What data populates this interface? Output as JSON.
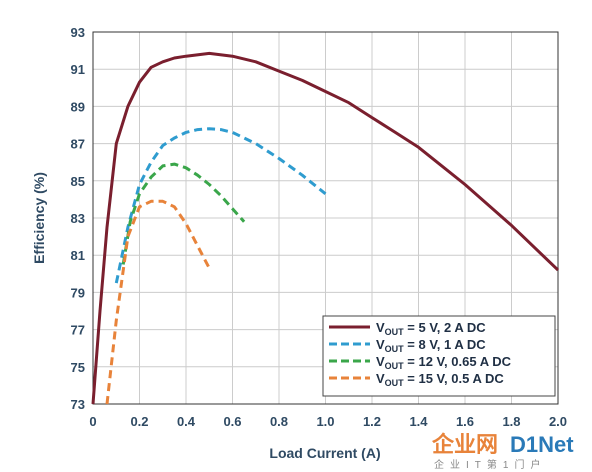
{
  "chart_data": {
    "type": "line",
    "xlabel": "Load Current (A)",
    "ylabel": "Efficiency (%)",
    "xlim": [
      0,
      2.0
    ],
    "ylim": [
      73,
      93
    ],
    "xticks": [
      "0",
      "0.2",
      "0.4",
      "0.6",
      "0.8",
      "1.0",
      "1.2",
      "1.4",
      "1.6",
      "1.8",
      "2.0"
    ],
    "yticks": [
      "73",
      "75",
      "77",
      "79",
      "81",
      "83",
      "85",
      "87",
      "89",
      "91",
      "93"
    ],
    "grid": true,
    "legend_position": "bottom-right",
    "series": [
      {
        "name_main": "V",
        "name_sub": "OUT",
        "name_rest": " = 5 V, 2 A DC",
        "color": "#7a1f2e",
        "dashed": false,
        "x": [
          0.0,
          0.03,
          0.06,
          0.1,
          0.15,
          0.2,
          0.25,
          0.3,
          0.35,
          0.4,
          0.5,
          0.6,
          0.7,
          0.8,
          0.9,
          1.0,
          1.1,
          1.2,
          1.3,
          1.4,
          1.5,
          1.6,
          1.7,
          1.8,
          1.9,
          2.0
        ],
        "y": [
          73.0,
          78.0,
          82.5,
          87.0,
          89.0,
          90.3,
          91.1,
          91.4,
          91.6,
          91.7,
          91.85,
          91.7,
          91.4,
          90.9,
          90.4,
          89.8,
          89.2,
          88.4,
          87.6,
          86.8,
          85.8,
          84.8,
          83.7,
          82.6,
          81.4,
          80.2
        ]
      },
      {
        "name_main": "V",
        "name_sub": "OUT",
        "name_rest": " = 8 V, 1 A DC",
        "color": "#2f9ccf",
        "dashed": true,
        "x": [
          0.1,
          0.15,
          0.2,
          0.25,
          0.3,
          0.35,
          0.4,
          0.45,
          0.5,
          0.55,
          0.6,
          0.7,
          0.8,
          0.9,
          1.0
        ],
        "y": [
          79.5,
          82.5,
          84.8,
          86.0,
          86.9,
          87.3,
          87.6,
          87.75,
          87.8,
          87.75,
          87.6,
          87.0,
          86.2,
          85.3,
          84.3
        ]
      },
      {
        "name_main": "V",
        "name_sub": "OUT",
        "name_rest": " = 12 V, 0.65 A DC",
        "color": "#3aa64a",
        "dashed": true,
        "x": [
          0.13,
          0.16,
          0.2,
          0.25,
          0.3,
          0.35,
          0.4,
          0.45,
          0.5,
          0.55,
          0.6,
          0.65
        ],
        "y": [
          80.5,
          82.8,
          84.3,
          85.2,
          85.8,
          85.9,
          85.7,
          85.3,
          84.8,
          84.2,
          83.5,
          82.8
        ]
      },
      {
        "name_main": "V",
        "name_sub": "OUT",
        "name_rest": " = 15 V, 0.5 A DC",
        "color": "#e8833a",
        "dashed": true,
        "x": [
          0.06,
          0.1,
          0.15,
          0.2,
          0.25,
          0.3,
          0.35,
          0.4,
          0.45,
          0.5
        ],
        "y": [
          73.0,
          77.5,
          82.0,
          83.6,
          83.9,
          83.9,
          83.6,
          82.7,
          81.5,
          80.3
        ]
      }
    ]
  },
  "watermark": {
    "logo_left": "企业网",
    "logo_right": "D1Net",
    "subtitle": "企业IT第1门户"
  }
}
